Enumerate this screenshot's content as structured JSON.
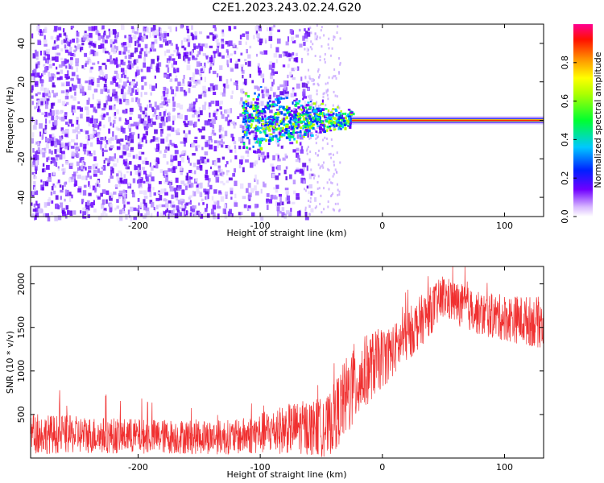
{
  "figure": {
    "title": "C2E1.2023.243.02.24.G20"
  },
  "chart_data": [
    {
      "type": "heatmap",
      "name": "spectrogram",
      "xlabel": "Height of straight line (km)",
      "ylabel": "Frequency (Hz)",
      "xlim": [
        -288,
        132
      ],
      "ylim": [
        -50,
        50
      ],
      "xticks": [
        -200,
        -100,
        0,
        100
      ],
      "yticks": [
        -40,
        -20,
        0,
        20,
        40
      ],
      "colorbar": {
        "label": "Normalized spectral amplitude",
        "range": [
          0,
          1
        ],
        "ticks": [
          0.0,
          0.2,
          0.4,
          0.6,
          0.8
        ],
        "colormap": [
          "#ffffff",
          "#6a00ff",
          "#0000ff",
          "#00d0ff",
          "#00ff40",
          "#b0ff00",
          "#ffff00",
          "#ff8000",
          "#ff0000",
          "#ff0080"
        ]
      },
      "regions": [
        {
          "desc": "broadband scatter",
          "x_range": [
            -288,
            -60
          ],
          "freq_range": [
            -50,
            50
          ],
          "amplitude": 0.15
        },
        {
          "desc": "narrowing carrier",
          "x_range": [
            -115,
            -25
          ],
          "freq_range": [
            -4,
            6
          ],
          "amplitude": 0.35
        },
        {
          "desc": "carrier line",
          "x_range": [
            -25,
            132
          ],
          "freq": 0,
          "amplitude": 0.95
        }
      ]
    },
    {
      "type": "line",
      "name": "snr",
      "xlabel": "Height of straight line (km)",
      "ylabel": "SNR (10 * v/v)",
      "xlim": [
        -288,
        132
      ],
      "ylim": [
        0,
        2200
      ],
      "xticks": [
        -200,
        -100,
        0,
        100
      ],
      "yticks": [
        500,
        1000,
        1500,
        2000
      ],
      "color": "#f03030",
      "envelope": [
        {
          "x": -288,
          "mean": 280,
          "spread": 230
        },
        {
          "x": -200,
          "mean": 250,
          "spread": 200
        },
        {
          "x": -120,
          "mean": 240,
          "spread": 200
        },
        {
          "x": -70,
          "mean": 350,
          "spread": 300
        },
        {
          "x": -45,
          "mean": 350,
          "spread": 350
        },
        {
          "x": -25,
          "mean": 800,
          "spread": 500
        },
        {
          "x": -10,
          "mean": 1050,
          "spread": 400
        },
        {
          "x": 10,
          "mean": 1250,
          "spread": 300
        },
        {
          "x": 30,
          "mean": 1550,
          "spread": 300
        },
        {
          "x": 50,
          "mean": 1850,
          "spread": 250
        },
        {
          "x": 80,
          "mean": 1650,
          "spread": 250
        },
        {
          "x": 132,
          "mean": 1550,
          "spread": 300
        }
      ]
    }
  ]
}
